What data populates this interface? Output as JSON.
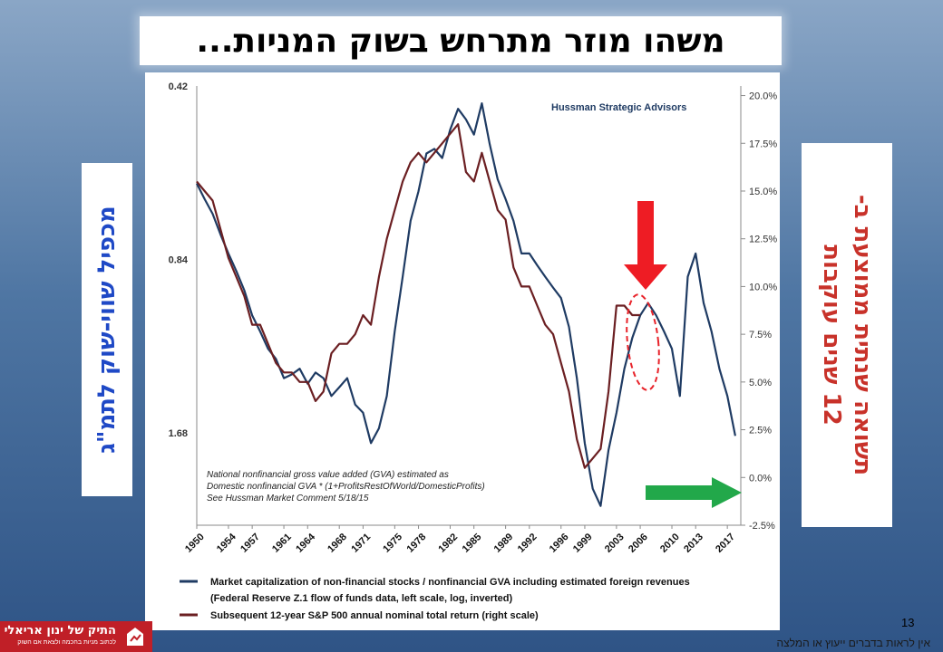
{
  "slide": {
    "title": "משהו מוזר מתרחש בשוק המניות...",
    "left_label": "מכפיל שווי-שוק לתמ\"ג",
    "right_label_line1": "תשואה שנתית ממוצעת ב-",
    "right_label_line2": "12 שנים עוקבות",
    "page_number": "13",
    "disclaimer": "אין לראות בדברים ייעוץ או המלצה",
    "logo_main": "התיק של ינון אריאלי",
    "logo_sub": "לכתוב מניות בחכמה ולצאת אם השוק",
    "colors": {
      "background_top": "#8aa6c6",
      "background_bottom": "#2f5486",
      "left_label": "#1f49c6",
      "right_label": "#c8322a",
      "series_valuation": "#1f3b63",
      "series_return": "#6b1f22",
      "down_arrow": "#ee1c24",
      "right_arrow": "#22a84a",
      "highlight_ellipse": "#e8232a"
    },
    "icons": [
      "down-arrow-icon",
      "right-arrow-icon",
      "logo-emblem-icon"
    ]
  },
  "chart_data": {
    "type": "line",
    "watermark": "Hussman Strategic Advisors",
    "annotation_lines": [
      "National nonfinancial gross value added (GVA) estimated as",
      "Domestic nonfinancial GVA  * (1+ProfitsRestOfWorld/DomesticProfits)",
      "See Hussman Market Comment 5/18/15"
    ],
    "x_ticks": [
      "1950",
      "1954",
      "1957",
      "1961",
      "1964",
      "1968",
      "1971",
      "1975",
      "1978",
      "1982",
      "1985",
      "1989",
      "1992",
      "1996",
      "1999",
      "2003",
      "2006",
      "2010",
      "2013",
      "2017"
    ],
    "left_axis": {
      "ticks": [
        "0.42",
        "0.84",
        "1.68"
      ],
      "range": [
        0.42,
        2.43
      ],
      "scale": "log",
      "inverted": true
    },
    "right_axis": {
      "ticks": [
        "20.0%",
        "17.5%",
        "15.0%",
        "12.5%",
        "10.0%",
        "7.5%",
        "5.0%",
        "2.5%",
        "0.0%",
        "-2.5%"
      ],
      "range": [
        -2.5,
        20.5
      ]
    },
    "legend": [
      "Market capitalization of non-financial stocks / nonfinancial GVA including estimated foreign revenues",
      "(Federal Reserve Z.1 flow of funds data, left scale, log, inverted)",
      "Subsequent 12-year S&P 500 annual nominal total return (right scale)"
    ],
    "series": [
      {
        "name": "Market capitalization of non-financial stocks / nonfinancial GVA including estimated foreign revenues",
        "axis": "left_inverted",
        "x": [
          1950,
          1951,
          1952,
          1953,
          1954,
          1955,
          1956,
          1957,
          1958,
          1959,
          1960,
          1961,
          1962,
          1963,
          1964,
          1965,
          1966,
          1967,
          1968,
          1969,
          1970,
          1971,
          1972,
          1973,
          1974,
          1975,
          1976,
          1977,
          1978,
          1979,
          1980,
          1981,
          1982,
          1983,
          1984,
          1985,
          1986,
          1987,
          1988,
          1989,
          1990,
          1991,
          1992,
          1993,
          1994,
          1995,
          1996,
          1997,
          1998,
          1999,
          2000,
          2001,
          2002,
          2003,
          2004,
          2005,
          2006,
          2007,
          2008,
          2009,
          2010,
          2011,
          2012,
          2013,
          2014,
          2015,
          2016,
          2017,
          2018
        ],
        "y": [
          0.62,
          0.66,
          0.7,
          0.76,
          0.82,
          0.88,
          0.95,
          1.05,
          1.12,
          1.2,
          1.25,
          1.35,
          1.33,
          1.3,
          1.38,
          1.32,
          1.35,
          1.45,
          1.4,
          1.35,
          1.5,
          1.55,
          1.75,
          1.65,
          1.45,
          1.12,
          0.9,
          0.72,
          0.64,
          0.55,
          0.54,
          0.56,
          0.5,
          0.46,
          0.48,
          0.51,
          0.45,
          0.53,
          0.61,
          0.66,
          0.72,
          0.82,
          0.82,
          0.86,
          0.9,
          0.94,
          0.98,
          1.1,
          1.35,
          1.75,
          2.1,
          2.25,
          1.8,
          1.55,
          1.3,
          1.15,
          1.05,
          1.0,
          1.05,
          1.12,
          1.2,
          1.45,
          0.9,
          0.82,
          1.0,
          1.12,
          1.3,
          1.45,
          1.7
        ]
      },
      {
        "name": "Subsequent 12-year S&P 500 annual nominal total return (right scale)",
        "axis": "right",
        "x": [
          1950,
          1951,
          1952,
          1953,
          1954,
          1955,
          1956,
          1957,
          1958,
          1959,
          1960,
          1961,
          1962,
          1963,
          1964,
          1965,
          1966,
          1967,
          1968,
          1969,
          1970,
          1971,
          1972,
          1973,
          1974,
          1975,
          1976,
          1977,
          1978,
          1979,
          1980,
          1981,
          1982,
          1983,
          1984,
          1985,
          1986,
          1987,
          1988,
          1989,
          1990,
          1991,
          1992,
          1993,
          1994,
          1995,
          1996,
          1997,
          1998,
          1999,
          2000,
          2001,
          2002,
          2003,
          2004,
          2005,
          2006
        ],
        "y": [
          15.5,
          15.0,
          14.5,
          13.0,
          11.5,
          10.5,
          9.5,
          8.0,
          8.0,
          7.0,
          6.0,
          5.5,
          5.5,
          5.0,
          5.0,
          4.0,
          4.5,
          6.5,
          7.0,
          7.0,
          7.5,
          8.5,
          8.0,
          10.5,
          12.5,
          14.0,
          15.5,
          16.5,
          17.0,
          16.5,
          17.0,
          17.5,
          18.0,
          18.5,
          16.0,
          15.5,
          17.0,
          15.5,
          14.0,
          13.5,
          11.0,
          10.0,
          10.0,
          9.0,
          8.0,
          7.5,
          6.0,
          4.5,
          2.0,
          0.5,
          1.0,
          1.5,
          4.5,
          9.0,
          9.0,
          8.5,
          8.5
        ]
      }
    ]
  }
}
